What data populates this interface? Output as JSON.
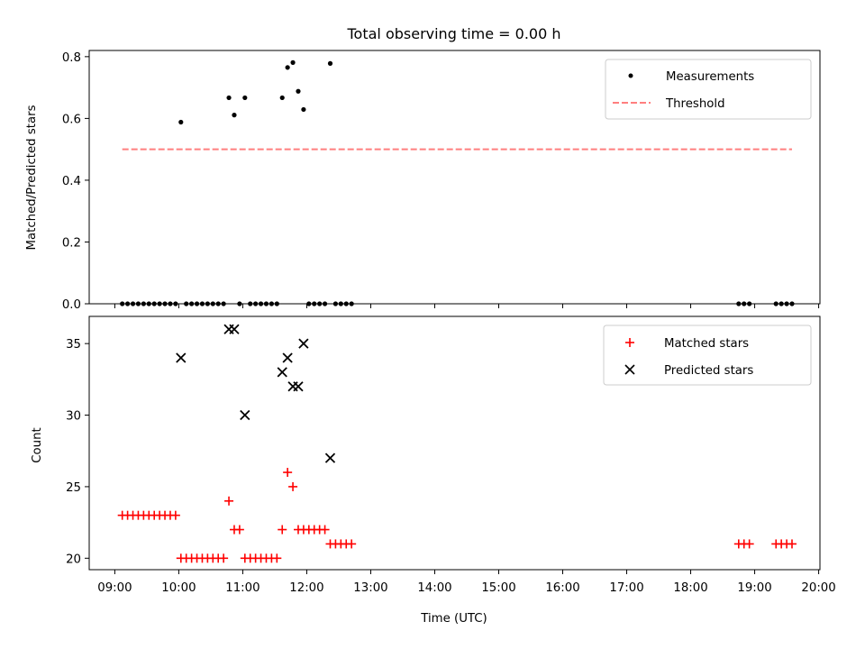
{
  "chart_data": [
    {
      "type": "scatter",
      "title": "Total observing time = 0.00 h",
      "xlabel": "",
      "ylabel": "Matched/Predicted stars",
      "ylim": [
        0,
        0.82
      ],
      "yticks": [
        "0.0",
        "0.2",
        "0.4",
        "0.6",
        "0.8"
      ],
      "ytick_values": [
        0,
        0.2,
        0.4,
        0.6,
        0.8
      ],
      "legend_position": "top-right",
      "series": [
        {
          "name": "Measurements",
          "marker": "dot",
          "color": "#000000",
          "points": [
            [
              "09:07",
              0
            ],
            [
              "09:12",
              0
            ],
            [
              "09:17",
              0
            ],
            [
              "09:22",
              0
            ],
            [
              "09:27",
              0
            ],
            [
              "09:32",
              0
            ],
            [
              "09:37",
              0
            ],
            [
              "09:42",
              0
            ],
            [
              "09:47",
              0
            ],
            [
              "09:52",
              0
            ],
            [
              "09:57",
              0
            ],
            [
              "10:02",
              0.588
            ],
            [
              "10:07",
              0
            ],
            [
              "10:12",
              0
            ],
            [
              "10:17",
              0
            ],
            [
              "10:22",
              0
            ],
            [
              "10:27",
              0
            ],
            [
              "10:32",
              0
            ],
            [
              "10:37",
              0
            ],
            [
              "10:42",
              0
            ],
            [
              "10:47",
              0.667
            ],
            [
              "10:52",
              0.611
            ],
            [
              "10:57",
              0
            ],
            [
              "11:02",
              0.667
            ],
            [
              "11:07",
              0
            ],
            [
              "11:12",
              0
            ],
            [
              "11:17",
              0
            ],
            [
              "11:22",
              0
            ],
            [
              "11:27",
              0
            ],
            [
              "11:32",
              0
            ],
            [
              "11:37",
              0.667
            ],
            [
              "11:42",
              0.765
            ],
            [
              "11:47",
              0.781
            ],
            [
              "11:52",
              0.688
            ],
            [
              "11:57",
              0.629
            ],
            [
              "12:02",
              0
            ],
            [
              "12:07",
              0
            ],
            [
              "12:12",
              0
            ],
            [
              "12:17",
              0
            ],
            [
              "12:22",
              0.778
            ],
            [
              "12:27",
              0
            ],
            [
              "12:32",
              0
            ],
            [
              "12:37",
              0
            ],
            [
              "12:42",
              0
            ],
            [
              "18:45",
              0
            ],
            [
              "18:50",
              0
            ],
            [
              "18:55",
              0
            ],
            [
              "19:20",
              0
            ],
            [
              "19:25",
              0
            ],
            [
              "19:30",
              0
            ],
            [
              "19:35",
              0
            ]
          ]
        },
        {
          "name": "Threshold",
          "type": "line",
          "style": "dashed",
          "color": "#ff7f7f",
          "points": [
            [
              "09:07",
              0.5
            ],
            [
              "19:35",
              0.5
            ]
          ]
        }
      ]
    },
    {
      "type": "scatter",
      "title": "",
      "xlabel": "Time (UTC)",
      "ylabel": "Count",
      "ylim": [
        19.2,
        36.9
      ],
      "yticks": [
        "20",
        "25",
        "30",
        "35"
      ],
      "ytick_values": [
        20,
        25,
        30,
        35
      ],
      "xticks": [
        "09:00",
        "10:00",
        "11:00",
        "12:00",
        "13:00",
        "14:00",
        "15:00",
        "16:00",
        "17:00",
        "18:00",
        "19:00",
        "20:00"
      ],
      "legend_position": "top-right",
      "series": [
        {
          "name": "Matched stars",
          "marker": "plus",
          "color": "#ff0000",
          "points": [
            [
              "09:07",
              23
            ],
            [
              "09:12",
              23
            ],
            [
              "09:17",
              23
            ],
            [
              "09:22",
              23
            ],
            [
              "09:27",
              23
            ],
            [
              "09:32",
              23
            ],
            [
              "09:37",
              23
            ],
            [
              "09:42",
              23
            ],
            [
              "09:47",
              23
            ],
            [
              "09:52",
              23
            ],
            [
              "09:57",
              23
            ],
            [
              "10:02",
              20
            ],
            [
              "10:07",
              20
            ],
            [
              "10:12",
              20
            ],
            [
              "10:17",
              20
            ],
            [
              "10:22",
              20
            ],
            [
              "10:27",
              20
            ],
            [
              "10:32",
              20
            ],
            [
              "10:37",
              20
            ],
            [
              "10:42",
              20
            ],
            [
              "10:47",
              24
            ],
            [
              "10:52",
              22
            ],
            [
              "10:57",
              22
            ],
            [
              "11:02",
              20
            ],
            [
              "11:07",
              20
            ],
            [
              "11:12",
              20
            ],
            [
              "11:17",
              20
            ],
            [
              "11:22",
              20
            ],
            [
              "11:27",
              20
            ],
            [
              "11:32",
              20
            ],
            [
              "11:37",
              22
            ],
            [
              "11:42",
              26
            ],
            [
              "11:47",
              25
            ],
            [
              "11:52",
              22
            ],
            [
              "11:57",
              22
            ],
            [
              "12:02",
              22
            ],
            [
              "12:07",
              22
            ],
            [
              "12:12",
              22
            ],
            [
              "12:17",
              22
            ],
            [
              "12:22",
              21
            ],
            [
              "12:27",
              21
            ],
            [
              "12:32",
              21
            ],
            [
              "12:37",
              21
            ],
            [
              "12:42",
              21
            ],
            [
              "18:45",
              21
            ],
            [
              "18:50",
              21
            ],
            [
              "18:55",
              21
            ],
            [
              "19:20",
              21
            ],
            [
              "19:25",
              21
            ],
            [
              "19:30",
              21
            ],
            [
              "19:35",
              21
            ]
          ]
        },
        {
          "name": "Predicted stars",
          "marker": "x",
          "color": "#000000",
          "points": [
            [
              "10:02",
              34
            ],
            [
              "10:47",
              36
            ],
            [
              "10:52",
              36
            ],
            [
              "11:02",
              30
            ],
            [
              "11:37",
              33
            ],
            [
              "11:42",
              34
            ],
            [
              "11:47",
              32
            ],
            [
              "11:52",
              32
            ],
            [
              "11:57",
              35
            ],
            [
              "12:22",
              27
            ]
          ]
        }
      ]
    }
  ]
}
